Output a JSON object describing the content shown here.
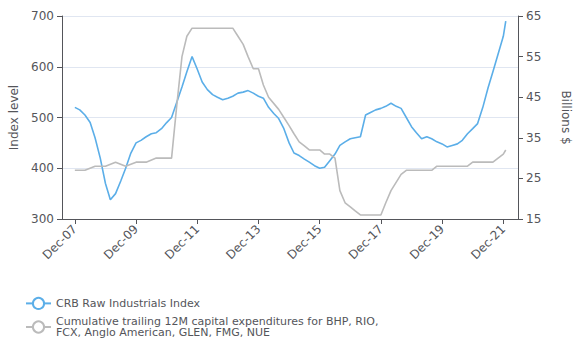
{
  "chart_data": {
    "type": "line",
    "xlim": [
      2007.5,
      2022.4
    ],
    "xticks": [
      {
        "value": 2007.92,
        "label": "Dec-07"
      },
      {
        "value": 2009.92,
        "label": "Dec-09"
      },
      {
        "value": 2011.92,
        "label": "Dec-11"
      },
      {
        "value": 2013.92,
        "label": "Dec-13"
      },
      {
        "value": 2015.92,
        "label": "Dec-15"
      },
      {
        "value": 2017.92,
        "label": "Dec-17"
      },
      {
        "value": 2019.92,
        "label": "Dec-19"
      },
      {
        "value": 2021.92,
        "label": "Dec-21"
      }
    ],
    "ylabel": "Index level",
    "ylim": [
      300,
      700
    ],
    "yticks": [
      300,
      400,
      500,
      600,
      700
    ],
    "y2label": "Billions $",
    "y2lim": [
      15,
      65
    ],
    "y2ticks": [
      15,
      25,
      35,
      45,
      55,
      65
    ],
    "grid": true,
    "legend": "lower left",
    "series": [
      {
        "name": "CRB Raw Industrials Index",
        "color": "#5BAEE8",
        "axis": "y",
        "x": [
          2007.92,
          2008.08,
          2008.25,
          2008.42,
          2008.58,
          2008.75,
          2008.92,
          2009.08,
          2009.25,
          2009.42,
          2009.58,
          2009.75,
          2009.92,
          2010.08,
          2010.25,
          2010.42,
          2010.58,
          2010.75,
          2010.92,
          2011.08,
          2011.25,
          2011.42,
          2011.58,
          2011.75,
          2011.92,
          2012.08,
          2012.25,
          2012.42,
          2012.58,
          2012.75,
          2012.92,
          2013.08,
          2013.25,
          2013.42,
          2013.58,
          2013.75,
          2013.92,
          2014.08,
          2014.25,
          2014.42,
          2014.58,
          2014.75,
          2014.92,
          2015.08,
          2015.25,
          2015.42,
          2015.58,
          2015.75,
          2015.92,
          2016.08,
          2016.25,
          2016.42,
          2016.58,
          2016.75,
          2016.92,
          2017.08,
          2017.25,
          2017.42,
          2017.58,
          2017.75,
          2017.92,
          2018.08,
          2018.25,
          2018.42,
          2018.58,
          2018.75,
          2018.92,
          2019.08,
          2019.25,
          2019.42,
          2019.58,
          2019.75,
          2019.92,
          2020.08,
          2020.25,
          2020.42,
          2020.58,
          2020.75,
          2020.92,
          2021.08,
          2021.25,
          2021.42,
          2021.58,
          2021.75,
          2021.92,
          2022.0
        ],
        "values": [
          520,
          515,
          505,
          490,
          460,
          420,
          370,
          338,
          350,
          375,
          400,
          430,
          450,
          455,
          462,
          468,
          470,
          478,
          490,
          500,
          530,
          560,
          590,
          620,
          595,
          570,
          555,
          545,
          540,
          535,
          538,
          542,
          548,
          550,
          553,
          548,
          542,
          538,
          520,
          508,
          498,
          478,
          450,
          430,
          425,
          418,
          412,
          405,
          400,
          402,
          415,
          428,
          445,
          452,
          458,
          460,
          462,
          505,
          510,
          515,
          518,
          522,
          528,
          522,
          518,
          500,
          482,
          470,
          458,
          462,
          458,
          452,
          448,
          442,
          445,
          448,
          455,
          468,
          478,
          488,
          520,
          558,
          590,
          625,
          660,
          690
        ]
      },
      {
        "name": "Cumulative trailing 12M capital expenditures for BHP, RIO,\nFCX, Anglo American, GLEN, FMG, NUE",
        "color": "#BBBBBB",
        "axis": "y2",
        "x": [
          2007.92,
          2008.25,
          2008.58,
          2008.92,
          2009.25,
          2009.58,
          2009.92,
          2010.25,
          2010.58,
          2010.92,
          2011.08,
          2011.25,
          2011.42,
          2011.58,
          2011.75,
          2011.92,
          2012.08,
          2012.25,
          2012.42,
          2012.58,
          2012.75,
          2012.92,
          2013.08,
          2013.25,
          2013.42,
          2013.58,
          2013.75,
          2013.92,
          2014.08,
          2014.25,
          2014.58,
          2014.75,
          2014.92,
          2015.08,
          2015.25,
          2015.42,
          2015.58,
          2015.75,
          2015.92,
          2016.08,
          2016.25,
          2016.42,
          2016.58,
          2016.75,
          2016.92,
          2017.08,
          2017.25,
          2017.42,
          2017.58,
          2017.75,
          2017.92,
          2018.08,
          2018.25,
          2018.58,
          2018.75,
          2018.92,
          2019.08,
          2019.25,
          2019.58,
          2019.75,
          2019.92,
          2020.08,
          2020.25,
          2020.58,
          2020.75,
          2020.92,
          2021.08,
          2021.25,
          2021.58,
          2021.75,
          2021.92,
          2022.0
        ],
        "values": [
          27,
          27,
          28,
          28,
          29,
          28,
          29,
          29,
          30,
          30,
          30,
          43,
          55,
          60,
          62,
          62,
          62,
          62,
          62,
          62,
          62,
          62,
          62,
          60,
          58,
          55,
          52,
          52,
          48,
          45,
          42,
          40,
          38,
          36,
          34,
          33,
          32,
          32,
          32,
          31,
          31,
          30,
          22,
          19,
          18,
          17,
          16,
          16,
          16,
          16,
          16,
          19,
          22,
          26,
          27,
          27,
          27,
          27,
          27,
          28,
          28,
          28,
          28,
          28,
          28,
          29,
          29,
          29,
          29,
          30,
          31,
          32
        ]
      }
    ]
  }
}
